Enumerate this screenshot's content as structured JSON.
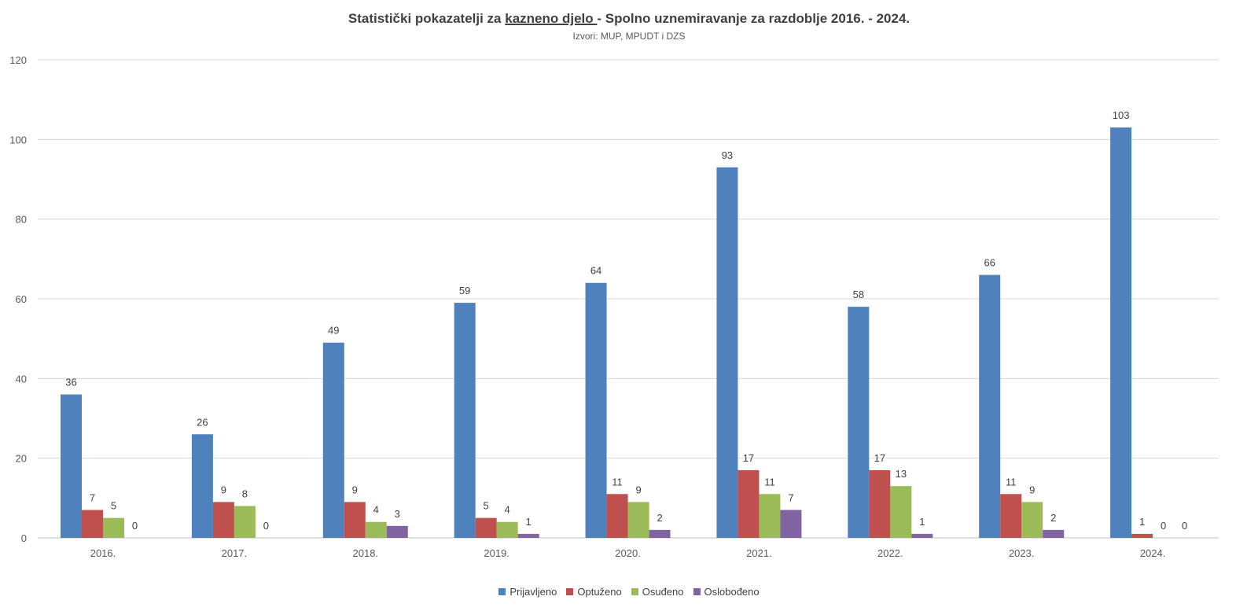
{
  "chart_data": {
    "type": "bar",
    "title_parts": [
      "Statistički pokazatelji za ",
      "kazneno djelo ",
      "- Spolno uznemiravanje za razdoblje 2016. - 2024."
    ],
    "subtitle": "Izvori: MUP, MPUDT i DZS",
    "categories": [
      "2016.",
      "2017.",
      "2018.",
      "2019.",
      "2020.",
      "2021.",
      "2022.",
      "2023.",
      "2024."
    ],
    "series": [
      {
        "name": "Prijavljeno",
        "color": "#4f81bd",
        "values": [
          36,
          26,
          49,
          59,
          64,
          93,
          58,
          66,
          103
        ]
      },
      {
        "name": "Optuženo",
        "color": "#c0504d",
        "values": [
          7,
          9,
          9,
          5,
          11,
          17,
          17,
          11,
          1
        ]
      },
      {
        "name": "Osuđeno",
        "color": "#9bbb59",
        "values": [
          5,
          8,
          4,
          4,
          9,
          11,
          13,
          9,
          0
        ]
      },
      {
        "name": "Oslobođeno",
        "color": "#8064a2",
        "values": [
          0,
          null,
          3,
          1,
          2,
          7,
          1,
          2,
          0
        ]
      }
    ],
    "data_labels": [
      [
        "36",
        "26",
        "49",
        "59",
        "64",
        "93",
        "58",
        "66",
        "103"
      ],
      [
        "7",
        "9",
        "9",
        "5",
        "11",
        "17",
        "17",
        "11",
        "1"
      ],
      [
        "5",
        "8",
        "4",
        "4",
        "9",
        "11",
        "13",
        "9",
        "0"
      ],
      [
        "0",
        "0",
        "3",
        "1",
        "2",
        "7",
        "1",
        "2",
        "0"
      ]
    ],
    "ylim": [
      0,
      120
    ],
    "yticks": [
      0,
      20,
      40,
      60,
      80,
      100,
      120
    ],
    "grid": true,
    "legend_position": "bottom",
    "xlabel": "",
    "ylabel": ""
  }
}
